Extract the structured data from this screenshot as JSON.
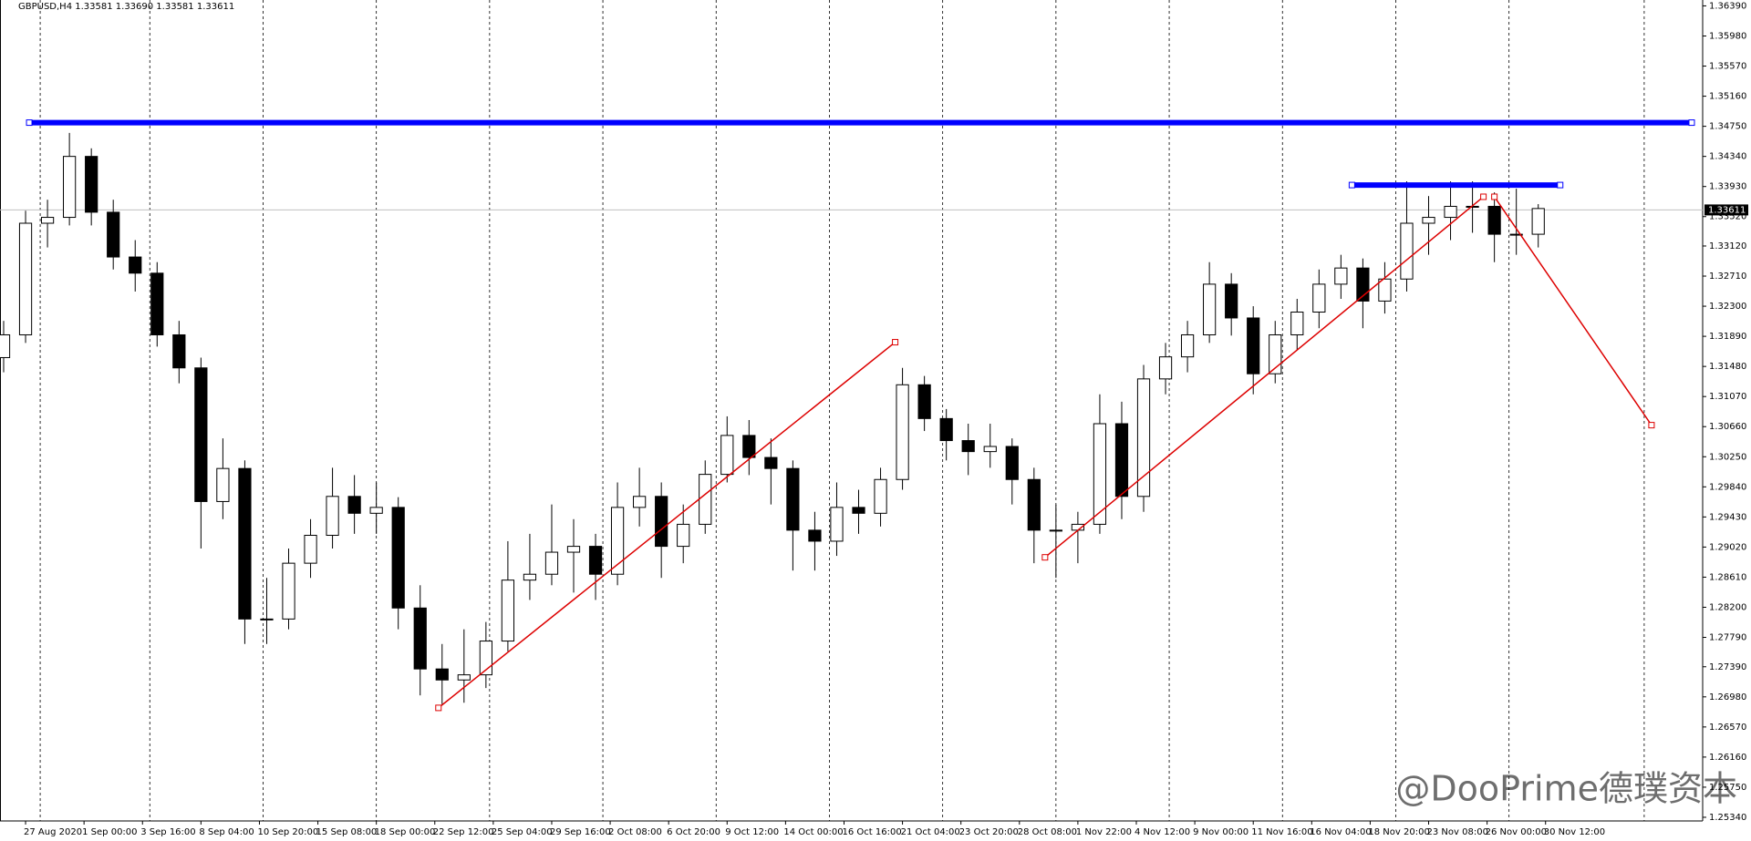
{
  "chart_data": {
    "type": "candlestick",
    "header": "GBPUSD,H4  1.33581 1.33690 1.33581 1.33611",
    "watermark": "@DooPrime德璞资本",
    "bull_color": "#ffffff",
    "bear_color": "#000000",
    "outline_color": "#000000",
    "xlim": [
      0,
      466
    ],
    "ylim": [
      1.2529,
      1.3647
    ],
    "xticks": [
      {
        "value": 7,
        "label": "27 Aug 2020"
      },
      {
        "value": 23,
        "label": "1 Sep 00:00"
      },
      {
        "value": 39,
        "label": "3 Sep 16:00"
      },
      {
        "value": 55,
        "label": "8 Sep 04:00"
      },
      {
        "value": 71,
        "label": "10 Sep 20:00"
      },
      {
        "value": 87,
        "label": "15 Sep 08:00"
      },
      {
        "value": 103,
        "label": "18 Sep 00:00"
      },
      {
        "value": 119,
        "label": "22 Sep 12:00"
      },
      {
        "value": 135,
        "label": "25 Sep 04:00"
      },
      {
        "value": 151,
        "label": "29 Sep 16:00"
      },
      {
        "value": 167,
        "label": "2 Oct 08:00"
      },
      {
        "value": 183,
        "label": "6 Oct 20:00"
      },
      {
        "value": 199,
        "label": "9 Oct 12:00"
      },
      {
        "value": 215,
        "label": "14 Oct 00:00"
      },
      {
        "value": 231,
        "label": "16 Oct 16:00"
      },
      {
        "value": 247,
        "label": "21 Oct 04:00"
      },
      {
        "value": 263,
        "label": "23 Oct 20:00"
      },
      {
        "value": 279,
        "label": "28 Oct 08:00"
      },
      {
        "value": 295,
        "label": "1 Nov 22:00"
      },
      {
        "value": 311,
        "label": "4 Nov 12:00"
      },
      {
        "value": 327,
        "label": "9 Nov 00:00"
      },
      {
        "value": 343,
        "label": "11 Nov 16:00"
      },
      {
        "value": 359,
        "label": "16 Nov 04:00"
      },
      {
        "value": 375,
        "label": "18 Nov 20:00"
      },
      {
        "value": 391,
        "label": "23 Nov 08:00"
      },
      {
        "value": 407,
        "label": "26 Nov 00:00"
      },
      {
        "value": 423,
        "label": "30 Nov 12:00"
      }
    ],
    "xgrid": [
      11,
      41,
      72,
      103,
      134,
      165,
      196,
      227,
      258,
      289,
      320,
      351,
      382,
      413,
      450
    ],
    "yticks": [
      {
        "value": 1.3639,
        "label": "1.36390"
      },
      {
        "value": 1.3598,
        "label": "1.35980"
      },
      {
        "value": 1.3557,
        "label": "1.35570"
      },
      {
        "value": 1.3516,
        "label": "1.35160"
      },
      {
        "value": 1.3475,
        "label": "1.34750"
      },
      {
        "value": 1.3434,
        "label": "1.34340"
      },
      {
        "value": 1.3393,
        "label": "1.33930"
      },
      {
        "value": 1.3352,
        "label": "1.33520"
      },
      {
        "value": 1.3312,
        "label": "1.33120"
      },
      {
        "value": 1.3271,
        "label": "1.32710"
      },
      {
        "value": 1.323,
        "label": "1.32300"
      },
      {
        "value": 1.3189,
        "label": "1.31890"
      },
      {
        "value": 1.3148,
        "label": "1.31480"
      },
      {
        "value": 1.3107,
        "label": "1.31070"
      },
      {
        "value": 1.3066,
        "label": "1.30660"
      },
      {
        "value": 1.3025,
        "label": "1.30250"
      },
      {
        "value": 1.2984,
        "label": "1.29840"
      },
      {
        "value": 1.2943,
        "label": "1.29430"
      },
      {
        "value": 1.2902,
        "label": "1.29020"
      },
      {
        "value": 1.2861,
        "label": "1.28610"
      },
      {
        "value": 1.282,
        "label": "1.28200"
      },
      {
        "value": 1.2779,
        "label": "1.27790"
      },
      {
        "value": 1.2739,
        "label": "1.27390"
      },
      {
        "value": 1.2698,
        "label": "1.26980"
      },
      {
        "value": 1.2657,
        "label": "1.26570"
      },
      {
        "value": 1.2616,
        "label": "1.26160"
      },
      {
        "value": 1.2575,
        "label": "1.25750"
      },
      {
        "value": 1.2534,
        "label": "1.25340"
      }
    ],
    "current_price": {
      "value": 1.33611,
      "label": "1.33611"
    },
    "x": [
      1,
      7,
      13,
      19,
      25,
      31,
      37,
      43,
      49,
      55,
      61,
      67,
      73,
      79,
      85,
      91,
      97,
      103,
      109,
      115,
      121,
      127,
      133,
      139,
      145,
      151,
      157,
      163,
      169,
      175,
      181,
      187,
      193,
      199,
      205,
      211,
      217,
      223,
      229,
      235,
      241,
      247,
      253,
      259,
      265,
      271,
      277,
      283,
      289,
      295,
      301,
      307,
      313,
      319,
      325,
      331,
      337,
      343,
      349,
      355,
      361,
      367,
      373,
      379,
      385,
      391,
      397,
      403,
      409,
      415,
      421
    ],
    "open": [
      1.316,
      1.3191,
      1.3343,
      1.3351,
      1.3434,
      1.3358,
      1.3297,
      1.3275,
      1.3191,
      1.3146,
      1.2964,
      1.3009,
      1.2804,
      1.2804,
      1.288,
      1.2918,
      1.2971,
      1.2948,
      1.2956,
      1.2819,
      1.2736,
      1.2721,
      1.2728,
      1.2774,
      1.2857,
      1.2865,
      1.2895,
      1.2903,
      1.2865,
      1.2956,
      1.2971,
      1.2903,
      1.2933,
      1.3001,
      1.3054,
      1.3024,
      1.3009,
      1.2925,
      1.291,
      1.2956,
      1.2948,
      1.2994,
      1.3123,
      1.3077,
      1.3047,
      1.3032,
      1.3039,
      1.2994,
      1.2925,
      1.2925,
      1.2933,
      1.307,
      1.2971,
      1.3131,
      1.3161,
      1.3191,
      1.326,
      1.3214,
      1.3138,
      1.3191,
      1.3222,
      1.326,
      1.3282,
      1.3237,
      1.3267,
      1.3343,
      1.3351,
      1.3366,
      1.3366,
      1.3328,
      1.3328
    ],
    "high": [
      1.321,
      1.336,
      1.3375,
      1.3466,
      1.3445,
      1.3375,
      1.332,
      1.329,
      1.321,
      1.316,
      1.305,
      1.302,
      1.286,
      1.29,
      1.294,
      1.301,
      1.3,
      1.299,
      1.297,
      1.285,
      1.277,
      1.279,
      1.28,
      1.291,
      1.292,
      1.296,
      1.294,
      1.292,
      1.299,
      1.301,
      1.299,
      1.296,
      1.302,
      1.308,
      1.3075,
      1.305,
      1.302,
      1.295,
      1.299,
      1.298,
      1.301,
      1.3146,
      1.3135,
      1.309,
      1.307,
      1.307,
      1.305,
      1.301,
      1.296,
      1.295,
      1.311,
      1.31,
      1.315,
      1.318,
      1.321,
      1.329,
      1.3275,
      1.323,
      1.321,
      1.324,
      1.328,
      1.33,
      1.3295,
      1.329,
      1.34,
      1.338,
      1.34,
      1.34,
      1.3385,
      1.339,
      1.3369
    ],
    "low": [
      1.314,
      1.318,
      1.331,
      1.334,
      1.334,
      1.328,
      1.325,
      1.3175,
      1.3125,
      1.29,
      1.294,
      1.277,
      1.277,
      1.279,
      1.286,
      1.29,
      1.292,
      1.292,
      1.279,
      1.27,
      1.2688,
      1.269,
      1.271,
      1.276,
      1.283,
      1.285,
      1.284,
      1.283,
      1.285,
      1.293,
      1.286,
      1.288,
      1.292,
      1.299,
      1.3,
      1.296,
      1.287,
      1.287,
      1.289,
      1.292,
      1.293,
      1.298,
      1.306,
      1.302,
      1.3,
      1.301,
      1.296,
      1.288,
      1.286,
      1.288,
      1.292,
      1.294,
      1.295,
      1.311,
      1.314,
      1.318,
      1.319,
      1.311,
      1.3125,
      1.317,
      1.32,
      1.324,
      1.32,
      1.322,
      1.325,
      1.33,
      1.332,
      1.333,
      1.329,
      1.33,
      1.331
    ],
    "close": [
      1.3191,
      1.3343,
      1.3351,
      1.3434,
      1.3358,
      1.3297,
      1.3275,
      1.3191,
      1.3146,
      1.2964,
      1.3009,
      1.2804,
      1.2804,
      1.288,
      1.2918,
      1.2971,
      1.2948,
      1.2956,
      1.2819,
      1.2736,
      1.2721,
      1.2728,
      1.2774,
      1.2857,
      1.2865,
      1.2895,
      1.2903,
      1.2865,
      1.2956,
      1.2971,
      1.2903,
      1.2933,
      1.3001,
      1.3054,
      1.3024,
      1.3009,
      1.2925,
      1.291,
      1.2956,
      1.2948,
      1.2994,
      1.3123,
      1.3077,
      1.3047,
      1.3032,
      1.3039,
      1.2994,
      1.2925,
      1.2925,
      1.2933,
      1.307,
      1.2971,
      1.3131,
      1.3161,
      1.3191,
      1.326,
      1.3214,
      1.3138,
      1.3191,
      1.3222,
      1.326,
      1.3282,
      1.3237,
      1.3267,
      1.3343,
      1.3351,
      1.3366,
      1.3366,
      1.3328,
      1.3328,
      1.3363
    ],
    "drawings": [
      {
        "color": "#0000ff",
        "width": 6,
        "x": [
          8,
          463
        ],
        "y": [
          1.348,
          1.348
        ]
      },
      {
        "color": "#0000ff",
        "width": 6,
        "x": [
          370,
          427
        ],
        "y": [
          1.3395,
          1.3395
        ]
      },
      {
        "color": "#dd0000",
        "width": 1.5,
        "x": [
          120,
          245
        ],
        "y": [
          1.2683,
          1.3181
        ]
      },
      {
        "color": "#dd0000",
        "width": 1.5,
        "x": [
          286,
          406
        ],
        "y": [
          1.2888,
          1.3379
        ]
      },
      {
        "color": "#dd0000",
        "width": 1.5,
        "x": [
          409,
          452
        ],
        "y": [
          1.3379,
          1.3068
        ]
      }
    ]
  }
}
